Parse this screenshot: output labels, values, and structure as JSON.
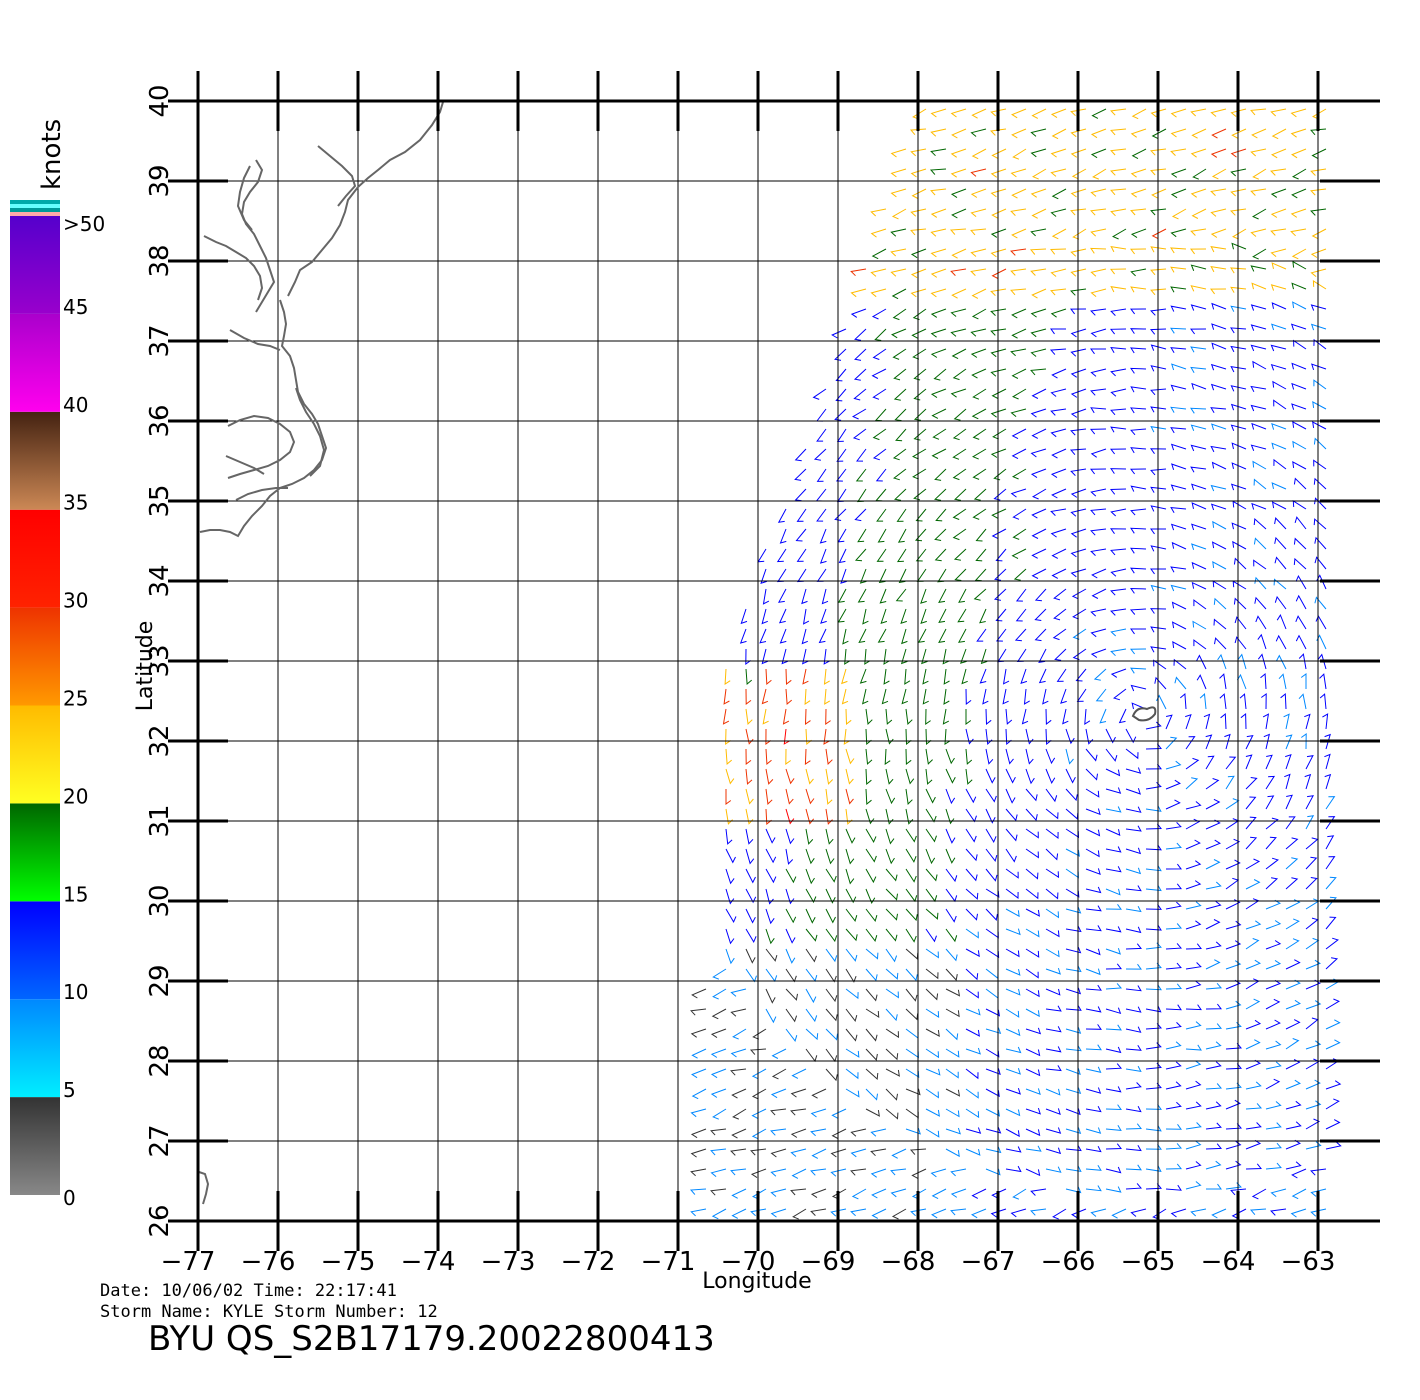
{
  "map": {
    "lon_range": [
      -77,
      -62.6
    ],
    "lat_range": [
      26,
      40
    ],
    "lon_ticks": [
      -77,
      -76,
      -75,
      -74,
      -73,
      -72,
      -71,
      -70,
      -69,
      -68,
      -67,
      -66,
      -65,
      -64,
      -63
    ],
    "lat_ticks": [
      26,
      27,
      28,
      29,
      30,
      31,
      32,
      33,
      34,
      35,
      36,
      37,
      38,
      39,
      40
    ],
    "lon_tick_labels": [
      "−77",
      "−76",
      "−75",
      "−74",
      "−73",
      "−72",
      "−71",
      "−70",
      "−69",
      "−68",
      "−67",
      "−66",
      "−65",
      "−64",
      "−63"
    ],
    "lat_tick_labels": [
      "26",
      "27",
      "28",
      "29",
      "30",
      "31",
      "32",
      "33",
      "34",
      "35",
      "36",
      "37",
      "38",
      "39",
      "40"
    ],
    "xlabel": "Longitude",
    "ylabel": "Latitude",
    "grid": true,
    "coastline_color": "#666666",
    "storm_center": {
      "lon": -65.2,
      "lat": 32.3
    }
  },
  "colorbar": {
    "unit": "knots",
    "labels": [
      {
        "text": ">50",
        "value": 50
      },
      {
        "text": "45",
        "value": 45
      },
      {
        "text": "40",
        "value": 40
      },
      {
        "text": "35",
        "value": 35
      },
      {
        "text": "30",
        "value": 30
      },
      {
        "text": "25",
        "value": 25
      },
      {
        "text": "20",
        "value": 20
      },
      {
        "text": "15",
        "value": 15
      },
      {
        "text": "10",
        "value": 10
      },
      {
        "text": "5",
        "value": 5
      },
      {
        "text": "0",
        "value": 0
      }
    ],
    "bands": [
      {
        "from": 0,
        "to": 5,
        "top": "#333333",
        "bottom": "#888888"
      },
      {
        "from": 5,
        "to": 10,
        "top": "#0088ff",
        "bottom": "#00eeff"
      },
      {
        "from": 10,
        "to": 15,
        "top": "#0000ff",
        "bottom": "#0066ff"
      },
      {
        "from": 15,
        "to": 20,
        "top": "#006600",
        "bottom": "#00ff00"
      },
      {
        "from": 20,
        "to": 25,
        "top": "#ffbb00",
        "bottom": "#ffff22"
      },
      {
        "from": 25,
        "to": 30,
        "top": "#ee3300",
        "bottom": "#ff9900"
      },
      {
        "from": 30,
        "to": 35,
        "top": "#ff0000",
        "bottom": "#ff2200"
      },
      {
        "from": 35,
        "to": 40,
        "top": "#442211",
        "bottom": "#cc8855"
      },
      {
        "from": 40,
        "to": 45,
        "top": "#aa00cc",
        "bottom": "#ff00ee"
      },
      {
        "from": 45,
        "to": 50,
        "top": "#5500cc",
        "bottom": "#9900cc"
      }
    ],
    "top_stripes": [
      "#00aaaa",
      "#66ffff",
      "#009999",
      "#ffaaaa"
    ]
  },
  "footer": {
    "date_line": "Date: 10/06/02   Time: 22:17:41",
    "storm_line": "Storm Name: KYLE   Storm Number: 12",
    "title": "BYU QS_S2B17179.20022800413"
  }
}
